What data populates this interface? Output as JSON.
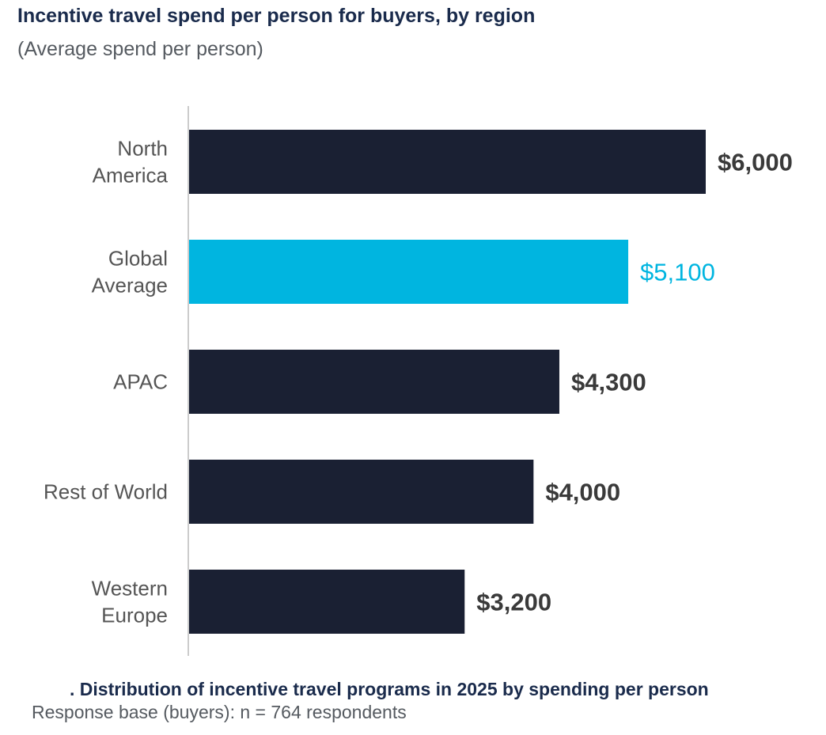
{
  "title": "Incentive travel spend per person for buyers, by region",
  "subtitle": "(Average spend per person)",
  "footnote_title": ". Distribution of incentive travel programs in 2025 by spending per person",
  "footnote": "Response base (buyers): n = 764 respondents",
  "colors": {
    "bar": "#1a2033",
    "highlight": "#00b5e0",
    "label": "#3a3a3a",
    "category": "#555555",
    "axis": "#cccccc"
  },
  "chart_data": {
    "type": "bar",
    "orientation": "horizontal",
    "categories": [
      [
        "North",
        "America"
      ],
      [
        "Global",
        "Average"
      ],
      [
        "APAC"
      ],
      [
        "Rest of World"
      ],
      [
        "Western",
        "Europe"
      ]
    ],
    "values": [
      6000,
      5100,
      4300,
      4000,
      3200
    ],
    "data_labels": [
      "$6,000",
      "$5,100",
      "$4,300",
      "$4,000",
      "$3,200"
    ],
    "highlight_index": 1,
    "xlim": [
      0,
      6000
    ]
  }
}
